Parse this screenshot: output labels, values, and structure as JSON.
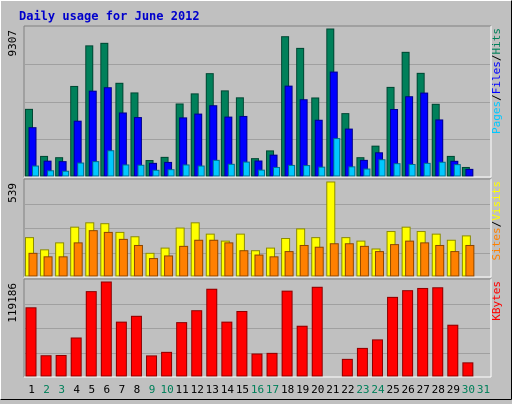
{
  "chart_data": {
    "type": "bar",
    "title": "Daily usage for June 2012",
    "colors": {
      "background": "#c0c0c0",
      "title": "#0000cc",
      "hits": "#00805a",
      "files": "#0000ff",
      "pages": "#00c8ff",
      "visits": "#ffff00",
      "sites": "#ff8000",
      "kbytes": "#ff0000",
      "weekday_label": "#000000",
      "weekend_label": "#00805a"
    },
    "categories": [
      "1",
      "2",
      "3",
      "4",
      "5",
      "6",
      "7",
      "8",
      "9",
      "10",
      "11",
      "12",
      "13",
      "14",
      "15",
      "16",
      "17",
      "18",
      "19",
      "20",
      "21",
      "22",
      "23",
      "24",
      "25",
      "26",
      "27",
      "28",
      "29",
      "30",
      "31"
    ],
    "weekend_days": [
      "2",
      "3",
      "9",
      "10",
      "16",
      "17",
      "23",
      "24",
      "30",
      "31"
    ],
    "panels": [
      {
        "key": "top",
        "ymax_label": "9307",
        "ylim": [
          0,
          9307
        ],
        "legend": [
          {
            "label": "Pages",
            "color": "#00c8ff"
          },
          {
            "label": "/",
            "color": "#000000"
          },
          {
            "label": "Files",
            "color": "#0000ff"
          },
          {
            "label": "/",
            "color": "#000000"
          },
          {
            "label": "Hits",
            "color": "#00805a"
          }
        ],
        "series": [
          {
            "name": "Hits",
            "values": [
              4220,
              1240,
              1160,
              5670,
              8240,
              8400,
              5870,
              5260,
              980,
              1180,
              4560,
              5200,
              6480,
              5390,
              4950,
              1100,
              1590,
              8820,
              8080,
              4940,
              9307,
              3950,
              1160,
              1890,
              5610,
              7830,
              6500,
              4540,
              1240,
              540,
              0
            ]
          },
          {
            "name": "Files",
            "values": [
              3060,
              940,
              910,
              3470,
              5370,
              5590,
              3990,
              3700,
              800,
              860,
              3680,
              3920,
              4450,
              3730,
              3770,
              950,
              1320,
              5690,
              4830,
              3530,
              6580,
              2970,
              990,
              1470,
              4210,
              5020,
              5250,
              3550,
              930,
              420,
              0
            ]
          },
          {
            "name": "Pages",
            "values": [
              630,
              330,
              300,
              820,
              910,
              1600,
              700,
              680,
              360,
              400,
              700,
              630,
              990,
              740,
              880,
              370,
              540,
              670,
              660,
              560,
              2370,
              580,
              440,
              1030,
              780,
              730,
              800,
              870,
              720,
              0,
              0
            ]
          }
        ]
      },
      {
        "key": "middle",
        "ymax_label": "539",
        "ylim": [
          0,
          539
        ],
        "legend": [
          {
            "label": "Sites",
            "color": "#ff8000"
          },
          {
            "label": "/",
            "color": "#000000"
          },
          {
            "label": "Visits",
            "color": "#ffff00"
          }
        ],
        "series": [
          {
            "name": "Visits",
            "values": [
              220,
              150,
              190,
              280,
              305,
              300,
              250,
              225,
              130,
              160,
              275,
              305,
              240,
              200,
              240,
              145,
              160,
              215,
              270,
              220,
              539,
              220,
              200,
              155,
              255,
              280,
              255,
              240,
              205,
              230,
              0
            ]
          },
          {
            "name": "Sites",
            "values": [
              130,
              110,
              110,
              190,
              260,
              250,
              210,
              175,
              100,
              115,
              170,
              205,
              205,
              190,
              145,
              120,
              110,
              140,
              175,
              165,
              185,
              185,
              170,
              140,
              180,
              200,
              190,
              175,
              140,
              175,
              0
            ]
          }
        ]
      },
      {
        "key": "bottom",
        "ymax_label": "119186",
        "ylim": [
          0,
          119186
        ],
        "legend": [
          {
            "label": "KBytes",
            "color": "#ff0000"
          }
        ],
        "series": [
          {
            "name": "KBytes",
            "values": [
              86500,
              25700,
              26000,
              48200,
              107000,
              119186,
              68300,
              75700,
              25500,
              30000,
              67700,
              82800,
              110000,
              68300,
              81800,
              27900,
              28700,
              107600,
              63100,
              112500,
              0,
              21100,
              35000,
              45800,
              99700,
              108200,
              111000,
              111900,
              64400,
              16700,
              0
            ]
          }
        ]
      }
    ]
  }
}
